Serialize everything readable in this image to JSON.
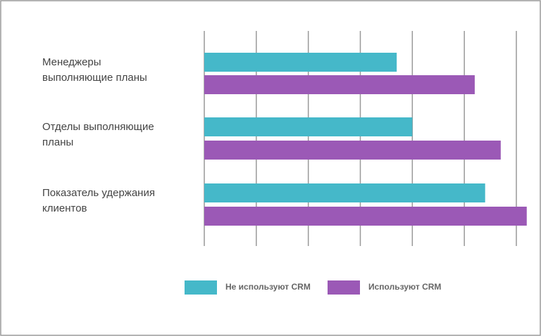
{
  "chart_data": {
    "type": "bar",
    "orientation": "horizontal",
    "categories": [
      "Менеджеры\nвыполняющие планы",
      "Отделы выполняющие\nпланы",
      "Показатель удержания\nклиентов"
    ],
    "series": [
      {
        "name": "Не используют CRM",
        "color": "#45b8c9",
        "values": [
          37,
          40,
          54
        ]
      },
      {
        "name": "Используют CRM",
        "color": "#9b59b6",
        "values": [
          52,
          57,
          62
        ]
      }
    ],
    "xlim": [
      0,
      60
    ],
    "xticks": [
      0,
      10,
      20,
      30,
      40,
      50,
      60
    ],
    "grid": true,
    "legend": "bottom"
  }
}
